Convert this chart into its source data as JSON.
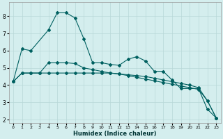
{
  "xlabel": "Humidex (Indice chaleur)",
  "background_color": "#d4eeee",
  "grid_color": "#b8d8d8",
  "line_color": "#006060",
  "xlim": [
    -0.5,
    23.5
  ],
  "ylim": [
    1.8,
    8.8
  ],
  "yticks": [
    2,
    3,
    4,
    5,
    6,
    7,
    8
  ],
  "xticks": [
    0,
    1,
    2,
    3,
    4,
    5,
    6,
    7,
    8,
    9,
    10,
    11,
    12,
    13,
    14,
    15,
    16,
    17,
    18,
    19,
    20,
    21,
    22,
    23
  ],
  "line_peaked_x": [
    0,
    1,
    2,
    4,
    5,
    6,
    7,
    8,
    9,
    10,
    11,
    12,
    13,
    14,
    15,
    16,
    17,
    18,
    19,
    20,
    21,
    22,
    23
  ],
  "line_peaked_y": [
    4.2,
    6.1,
    6.0,
    7.2,
    8.2,
    8.2,
    7.9,
    6.7,
    5.3,
    5.3,
    5.2,
    5.15,
    5.5,
    5.65,
    5.4,
    4.8,
    4.8,
    4.3,
    3.8,
    3.8,
    3.8,
    2.6,
    2.1
  ],
  "line_flat_x": [
    0,
    1,
    2,
    3,
    4,
    5,
    6,
    7,
    8,
    9,
    10,
    11,
    12,
    13,
    14,
    15,
    16,
    17,
    18,
    19,
    20,
    21,
    22,
    23
  ],
  "line_flat_y": [
    4.2,
    4.7,
    4.7,
    4.7,
    4.7,
    4.7,
    4.7,
    4.7,
    4.7,
    4.7,
    4.7,
    4.7,
    4.65,
    4.6,
    4.55,
    4.5,
    4.4,
    4.3,
    4.2,
    4.1,
    4.0,
    3.85,
    3.1,
    2.1
  ],
  "line_diag_x": [
    0,
    1,
    2,
    3,
    4,
    5,
    6,
    7,
    8,
    9,
    10,
    11,
    12,
    13,
    14,
    15,
    16,
    17,
    18,
    19,
    20,
    21,
    22,
    23
  ],
  "line_diag_y": [
    4.2,
    4.7,
    4.7,
    4.7,
    5.3,
    5.3,
    5.3,
    5.25,
    5.0,
    4.9,
    4.8,
    4.7,
    4.65,
    4.55,
    4.45,
    4.35,
    4.25,
    4.15,
    4.05,
    3.95,
    3.85,
    3.75,
    3.1,
    2.1
  ]
}
